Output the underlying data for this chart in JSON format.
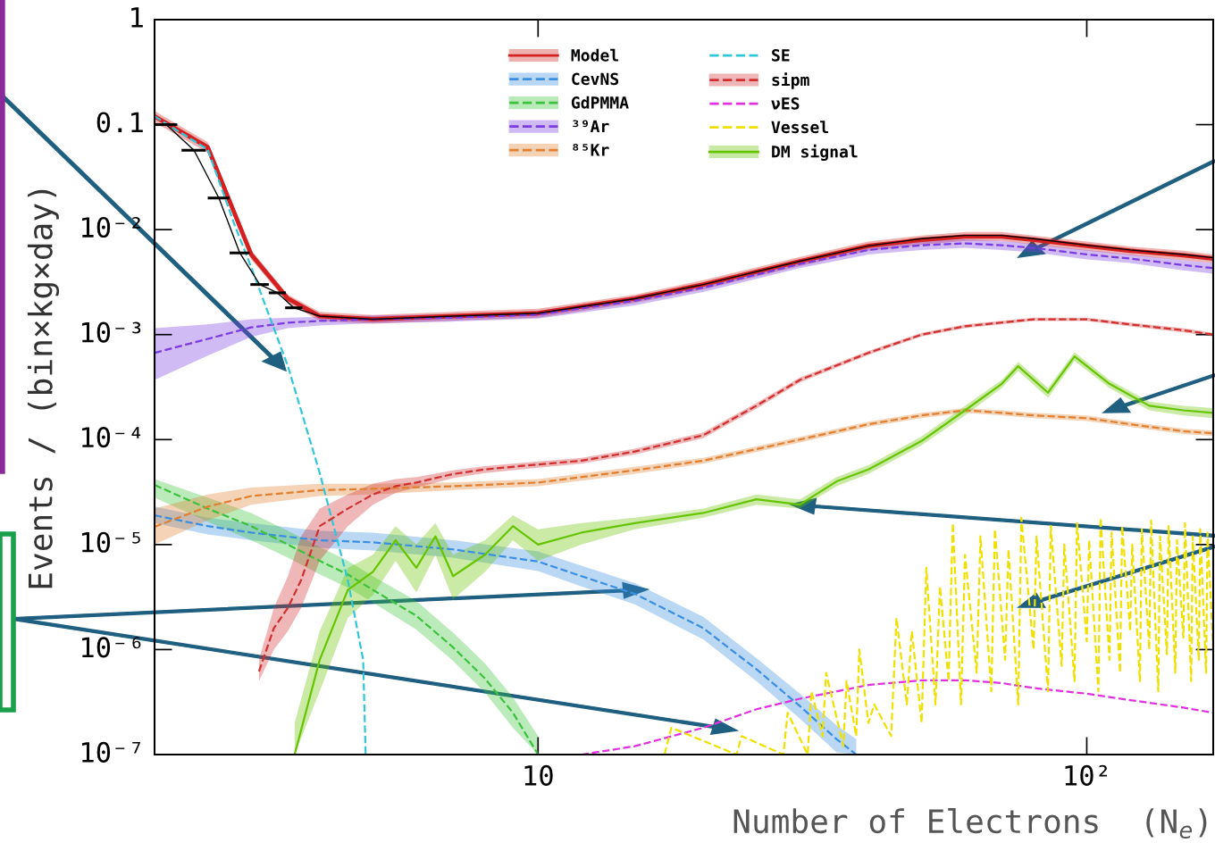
{
  "chart_data": {
    "type": "line",
    "xlabel": "Number of Electrons  (N$_{e}$)",
    "ylabel": "Events / (bin×kg×day)",
    "log": "xy",
    "xlim": [
      2,
      170
    ],
    "ylim": [
      1e-07,
      1
    ],
    "xticks": [
      10,
      {
        "value": 100,
        "label": "10²"
      }
    ],
    "yticks": [
      {
        "value": 1e-07,
        "label": "10⁻⁷"
      },
      {
        "value": 1e-06,
        "label": "10⁻⁶"
      },
      {
        "value": 1e-05,
        "label": "10⁻⁵"
      },
      {
        "value": 0.0001,
        "label": "10⁻⁴"
      },
      {
        "value": 0.001,
        "label": "10⁻³"
      },
      {
        "value": 0.01,
        "label": "10⁻²"
      },
      0.1,
      1
    ],
    "grid": false,
    "legend": "top",
    "marker": "none",
    "series": [
      {
        "name": "Model",
        "color": "#d42020",
        "line_style": "solid",
        "x": [
          2,
          2.5,
          3,
          3.5,
          4,
          5,
          7,
          10,
          15,
          20,
          30,
          40,
          50,
          60,
          70,
          80,
          100,
          120,
          150,
          170
        ],
        "values": [
          0.12,
          0.061,
          0.0058,
          0.0022,
          0.0015,
          0.0014,
          0.0015,
          0.0016,
          0.0022,
          0.003,
          0.005,
          0.007,
          0.008,
          0.0086,
          0.0086,
          0.008,
          0.007,
          0.0063,
          0.0057,
          0.0053
        ],
        "lower": [
          0.105,
          0.054,
          0.0052,
          0.002,
          0.00135,
          0.00127,
          0.00136,
          0.00145,
          0.002,
          0.0027,
          0.0045,
          0.0063,
          0.0072,
          0.0078,
          0.0078,
          0.0072,
          0.0063,
          0.0057,
          0.0051,
          0.0048
        ],
        "upper": [
          0.135,
          0.068,
          0.0064,
          0.0024,
          0.00165,
          0.00154,
          0.00165,
          0.00176,
          0.0024,
          0.0033,
          0.0055,
          0.0077,
          0.0088,
          0.0095,
          0.0095,
          0.0088,
          0.0077,
          0.0069,
          0.0063,
          0.0058
        ]
      },
      {
        "name": "CevNS",
        "color": "#3a8fe0",
        "line_style": "dashed",
        "x": [
          2,
          2.5,
          3,
          4,
          5,
          7,
          10,
          12,
          15,
          20,
          25,
          30,
          35,
          38
        ],
        "values": [
          1.9e-05,
          1.5e-05,
          1.3e-05,
          1.1e-05,
          1.05e-05,
          9e-06,
          6.9e-06,
          5e-06,
          3.4e-06,
          1.6e-06,
          6.5e-07,
          2.9e-07,
          1.4e-07,
          1e-07
        ],
        "lower": [
          1.6e-05,
          1.25e-05,
          1.1e-05,
          9.3e-06,
          8.8e-06,
          7.5e-06,
          5.6e-06,
          4e-06,
          2.7e-06,
          1.25e-06,
          5e-07,
          2.2e-07,
          1.05e-07,
          1e-07
        ],
        "upper": [
          2.3e-05,
          1.8e-05,
          1.6e-05,
          1.35e-05,
          1.3e-05,
          1.1e-05,
          8.6e-06,
          6.3e-06,
          4.3e-06,
          2.05e-06,
          8.3e-07,
          3.8e-07,
          1.9e-07,
          1.4e-07
        ]
      },
      {
        "name": "GdPMMA",
        "color": "#3cc23c",
        "line_style": "dashed",
        "x": [
          2,
          2.5,
          3,
          3.5,
          4,
          4.5,
          5,
          6,
          7,
          8,
          9,
          10
        ],
        "values": [
          3.7e-05,
          2.2e-05,
          1.5e-05,
          1e-05,
          7e-06,
          5.2e-06,
          3.7e-06,
          2.1e-06,
          1.05e-06,
          5.3e-07,
          2.5e-07,
          1e-07
        ],
        "lower": [
          2.8e-05,
          1.65e-05,
          1.1e-05,
          7.5e-06,
          5.2e-06,
          3.9e-06,
          2.8e-06,
          1.55e-06,
          7.8e-07,
          3.9e-07,
          1.8e-07,
          1e-07
        ],
        "upper": [
          4.2e-05,
          2.8e-05,
          2e-05,
          1.35e-05,
          9.5e-06,
          7e-06,
          5e-06,
          2.9e-06,
          1.45e-06,
          7.4e-07,
          3.5e-07,
          1.5e-07
        ]
      },
      {
        "name": "³⁹Ar",
        "color": "#7a3ce0",
        "line_style": "dashed",
        "x": [
          2,
          2.5,
          3,
          3.5,
          4,
          5,
          7,
          10,
          15,
          20,
          30,
          40,
          50,
          60,
          70,
          80,
          100,
          120,
          150,
          170
        ],
        "values": [
          0.00067,
          0.00091,
          0.00117,
          0.0013,
          0.00135,
          0.0014,
          0.00145,
          0.00155,
          0.0021,
          0.0028,
          0.0047,
          0.0064,
          0.0071,
          0.0074,
          0.0071,
          0.0067,
          0.0058,
          0.0053,
          0.0046,
          0.0043
        ],
        "lower": [
          0.00037,
          0.00063,
          0.00095,
          0.00115,
          0.00122,
          0.00128,
          0.00133,
          0.00142,
          0.0019,
          0.00255,
          0.0043,
          0.0058,
          0.0064,
          0.0067,
          0.0064,
          0.0061,
          0.0052,
          0.0048,
          0.0041,
          0.0038
        ],
        "upper": [
          0.00115,
          0.00125,
          0.0014,
          0.00145,
          0.00148,
          0.00152,
          0.00157,
          0.00168,
          0.0023,
          0.0031,
          0.0051,
          0.007,
          0.0078,
          0.0081,
          0.0078,
          0.0073,
          0.0064,
          0.0058,
          0.0051,
          0.0048
        ]
      },
      {
        "name": "⁸⁵Kr",
        "color": "#e08030",
        "line_style": "dashed",
        "x": [
          2,
          2.5,
          3,
          4,
          5,
          7,
          10,
          15,
          20,
          30,
          40,
          50,
          60,
          70,
          80,
          100,
          120,
          150,
          170
        ],
        "values": [
          1.48e-05,
          2.3e-05,
          2.9e-05,
          3.3e-05,
          3.4e-05,
          3.6e-05,
          3.9e-05,
          5.1e-05,
          6.3e-05,
          0.0001,
          0.00014,
          0.00017,
          0.00019,
          0.00018,
          0.00017,
          0.00016,
          0.00014,
          0.00012,
          0.000115
        ],
        "lower": [
          1e-05,
          1.7e-05,
          2.4e-05,
          2.9e-05,
          3e-05,
          3.3e-05,
          3.6e-05,
          4.7e-05,
          5.9e-05,
          9.4e-05,
          0.000132,
          0.00016,
          0.00018,
          0.00017,
          0.00016,
          0.00015,
          0.000132,
          0.000113,
          0.000108
        ],
        "upper": [
          2.2e-05,
          3e-05,
          3.5e-05,
          3.8e-05,
          3.8e-05,
          3.9e-05,
          4.2e-05,
          5.5e-05,
          6.7e-05,
          0.000106,
          0.000148,
          0.00018,
          0.0002,
          0.00019,
          0.00018,
          0.00017,
          0.000148,
          0.000127,
          0.000122
        ]
      },
      {
        "name": "SE",
        "color": "#30c8d8",
        "line_style": "dashed",
        "x": [
          2,
          2.5,
          2.8,
          3,
          3.5,
          4,
          4.5,
          4.8,
          4.85
        ],
        "values": [
          0.12,
          0.058,
          0.011,
          0.0044,
          0.0005,
          4.8e-05,
          4.6e-06,
          8e-07,
          1e-07
        ]
      },
      {
        "name": "sipm",
        "color": "#d03030",
        "line_style": "dashed",
        "x": [
          3.1,
          3.3,
          3.5,
          3.7,
          4,
          4.5,
          5,
          5.5,
          6,
          7,
          8,
          10,
          12,
          15,
          20,
          25,
          30,
          40,
          50,
          60,
          80,
          100,
          120,
          150,
          170
        ],
        "values": [
          6.2e-07,
          1.6e-06,
          2.5e-06,
          4.6e-06,
          1.5e-05,
          2.2e-05,
          3e-05,
          3.6e-05,
          3.9e-05,
          4.7e-05,
          5.2e-05,
          5.8e-05,
          6.3e-05,
          7.7e-05,
          0.00011,
          0.00021,
          0.00037,
          0.00067,
          0.001,
          0.0012,
          0.0014,
          0.0014,
          0.00125,
          0.0011,
          0.001
        ],
        "lower": [
          5e-07,
          1e-06,
          1.5e-06,
          2.5e-06,
          7e-06,
          1.5e-05,
          2.4e-05,
          3.1e-05,
          3.5e-05,
          4.3e-05,
          4.8e-05,
          5.4e-05,
          5.9e-05,
          7.2e-05,
          0.000103,
          0.000197,
          0.00035,
          0.00064,
          0.00096,
          0.00115,
          0.00135,
          0.00135,
          0.0012,
          0.00105,
          0.00096
        ],
        "upper": [
          8e-07,
          2.5e-06,
          5e-06,
          1.2e-05,
          2.2e-05,
          3e-05,
          3.8e-05,
          4.2e-05,
          4.4e-05,
          5.1e-05,
          5.6e-05,
          6.2e-05,
          6.7e-05,
          8.2e-05,
          0.000117,
          0.000223,
          0.00039,
          0.0007,
          0.00104,
          0.00125,
          0.00145,
          0.00145,
          0.0013,
          0.00115,
          0.00104
        ]
      },
      {
        "name": "νES",
        "color": "#e030e0",
        "line_style": "dashed",
        "x": [
          12,
          15,
          20,
          25,
          30,
          40,
          50,
          60,
          70,
          80,
          100,
          120,
          150,
          170
        ],
        "values": [
          1e-07,
          1.2e-07,
          1.8e-07,
          2.7e-07,
          3.4e-07,
          4.6e-07,
          5.1e-07,
          5.1e-07,
          4.8e-07,
          4.3e-07,
          3.8e-07,
          3.3e-07,
          2.8e-07,
          2.5e-07
        ]
      },
      {
        "name": "Vessel",
        "color": "#f0e000",
        "line_style": "dashed",
        "x": [
          17,
          17.5,
          23,
          23.5,
          28,
          28.5,
          31,
          31.5,
          33,
          33.5,
          36,
          36.5,
          38,
          38.5,
          40,
          41,
          44,
          45,
          47,
          48,
          50,
          51,
          53,
          54,
          56,
          57,
          59,
          60,
          63,
          64,
          67,
          68,
          71,
          72,
          75,
          76,
          80,
          81,
          85,
          86,
          90,
          91,
          95,
          96,
          100,
          101,
          105,
          106,
          110,
          111,
          115,
          116,
          120,
          121,
          125,
          126,
          130,
          131,
          135,
          136,
          140,
          141,
          145,
          146,
          150,
          151,
          155,
          156,
          160,
          161,
          165,
          166,
          170
        ],
        "values": [
          1e-07,
          1.8e-07,
          1e-07,
          1.5e-07,
          1e-07,
          2.5e-07,
          1e-07,
          4e-07,
          1.5e-07,
          6e-07,
          1.2e-07,
          5e-07,
          1.5e-07,
          1e-06,
          2e-07,
          3e-07,
          1.5e-07,
          2e-06,
          3e-07,
          1.5e-06,
          2e-07,
          6e-06,
          3e-07,
          4e-06,
          5e-07,
          1.6e-05,
          3e-07,
          8e-06,
          6e-07,
          1.2e-05,
          4e-07,
          1.4e-05,
          8e-07,
          9e-06,
          3e-07,
          1.8e-05,
          1e-06,
          1.2e-05,
          4e-07,
          1.5e-05,
          7e-07,
          1e-05,
          5e-07,
          1.6e-05,
          1.2e-06,
          1.1e-05,
          4e-07,
          1.8e-05,
          8e-07,
          1.3e-05,
          6e-07,
          1.5e-05,
          1.5e-06,
          1e-05,
          5e-07,
          1.4e-05,
          1e-06,
          1.7e-05,
          4e-07,
          1.2e-05,
          9e-07,
          1.5e-05,
          6e-07,
          1.1e-05,
          1.3e-06,
          1.6e-05,
          5e-07,
          1.2e-05,
          8e-07,
          1.4e-05,
          6e-07,
          1.3e-05,
          1e-06
        ]
      },
      {
        "name": "DM signal",
        "color": "#66c400",
        "line_style": "solid",
        "x": [
          3.6,
          4,
          4.5,
          5,
          5.5,
          6,
          6.5,
          7,
          8,
          9,
          10,
          12,
          15,
          20,
          25,
          30,
          35,
          40,
          50,
          60,
          70,
          75,
          85,
          95,
          110,
          130,
          150,
          170
        ],
        "values": [
          1e-07,
          8e-07,
          3.7e-06,
          5.5e-06,
          1.1e-05,
          6e-06,
          1.2e-05,
          5e-06,
          8e-06,
          1.5e-05,
          1e-05,
          1.3e-05,
          1.6e-05,
          2e-05,
          2.7e-05,
          2.4e-05,
          4e-05,
          5.2e-05,
          9.7e-05,
          0.00019,
          0.00034,
          0.0005,
          0.00028,
          0.00062,
          0.00034,
          0.00021,
          0.00019,
          0.00018
        ],
        "lower": [
          1e-07,
          4e-07,
          2e-06,
          3.3e-06,
          7e-06,
          3.5e-06,
          8e-06,
          3e-06,
          5.5e-06,
          1.1e-05,
          7e-06,
          1e-05,
          1.4e-05,
          1.8e-05,
          2.4e-05,
          2.2e-05,
          3.6e-05,
          4.7e-05,
          8.8e-05,
          0.00017,
          0.00031,
          0.00045,
          0.00025,
          0.00056,
          0.00031,
          0.00019,
          0.00017,
          0.00016
        ],
        "upper": [
          2e-07,
          1.5e-06,
          6e-06,
          8e-06,
          1.5e-05,
          1e-05,
          1.6e-05,
          8e-06,
          1.1e-05,
          1.9e-05,
          1.4e-05,
          1.6e-05,
          1.8e-05,
          2.2e-05,
          3e-05,
          2.7e-05,
          4.4e-05,
          5.7e-05,
          0.000107,
          0.00021,
          0.00037,
          0.00055,
          0.00031,
          0.00068,
          0.00037,
          0.00023,
          0.00021,
          0.0002
        ]
      },
      {
        "color": "#000000",
        "line_style": "solid",
        "x": [
          2.1,
          2.36,
          2.62,
          2.86,
          3.11,
          3.35,
          3.59,
          4,
          5,
          7,
          10,
          15,
          20,
          30,
          40,
          50,
          60,
          70,
          80,
          100,
          120,
          150,
          170
        ],
        "values": [
          0.1,
          0.057,
          0.02,
          0.006,
          0.003,
          0.0025,
          0.0018,
          0.0015,
          0.0014,
          0.0015,
          0.0016,
          0.0022,
          0.003,
          0.005,
          0.007,
          0.0082,
          0.0088,
          0.0088,
          0.0082,
          0.0071,
          0.0064,
          0.0058,
          0.0054
        ],
        "xerrors": [
          0.1,
          0.12,
          0.12,
          0.12,
          0.12,
          0.12,
          0.13,
          null,
          null,
          null,
          null,
          null,
          null,
          null,
          null,
          null,
          null,
          null,
          null,
          null,
          null,
          null,
          null
        ]
      }
    ]
  }
}
